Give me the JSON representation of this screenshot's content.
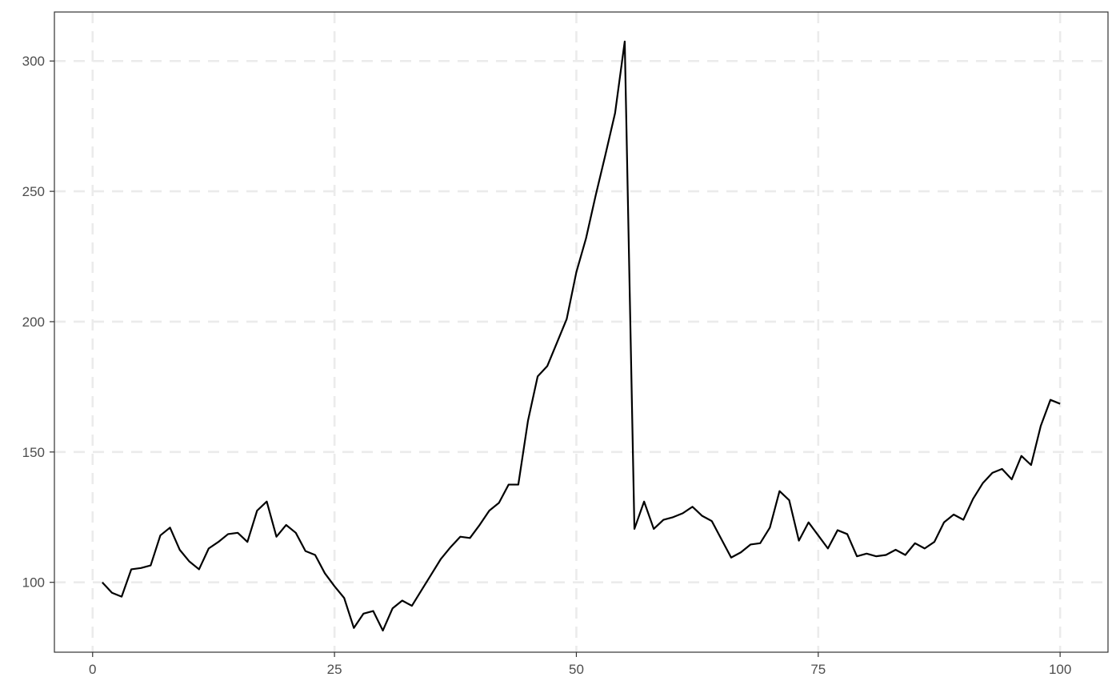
{
  "chart_data": {
    "type": "line",
    "title": "",
    "xlabel": "",
    "ylabel": "",
    "xlim": [
      -3.95,
      104.95
    ],
    "ylim": [
      73.2,
      318.8
    ],
    "x_ticks": [
      0,
      25,
      50,
      75,
      100
    ],
    "y_ticks": [
      100,
      150,
      200,
      250,
      300
    ],
    "x_tick_labels": [
      "0",
      "25",
      "50",
      "75",
      "100"
    ],
    "y_tick_labels": [
      "100",
      "150",
      "200",
      "250",
      "300"
    ],
    "grid": true,
    "grid_style": "dashed",
    "legend": "none",
    "line_color": "#000000",
    "series": [
      {
        "x": [
          1,
          2,
          3,
          4,
          5,
          6,
          7,
          8,
          9,
          10,
          11,
          12,
          13,
          14,
          15,
          16,
          17,
          18,
          19,
          20,
          21,
          22,
          23,
          24,
          25,
          26,
          27,
          28,
          29,
          30,
          31,
          32,
          33,
          34,
          35,
          36,
          37,
          38,
          39,
          40,
          41,
          42,
          43,
          44,
          45,
          46,
          47,
          48,
          49,
          50,
          51,
          52,
          53,
          54,
          55,
          56,
          57,
          58,
          59,
          60,
          61,
          62,
          63,
          64,
          65,
          66,
          67,
          68,
          69,
          70,
          71,
          72,
          73,
          74,
          75,
          76,
          77,
          78,
          79,
          80,
          81,
          82,
          83,
          84,
          85,
          86,
          87,
          88,
          89,
          90,
          91,
          92,
          93,
          94,
          95,
          96,
          97,
          98,
          99,
          100
        ],
        "values": [
          100,
          96,
          94.5,
          105,
          105.5,
          106.5,
          118,
          121,
          112.5,
          108,
          105,
          113,
          115.5,
          118.5,
          119,
          115.5,
          127.5,
          131,
          117.5,
          122,
          119,
          112,
          110.5,
          103.5,
          98.5,
          94,
          82.5,
          88,
          89,
          81.5,
          90,
          93,
          91,
          97,
          103,
          109,
          113.5,
          117.5,
          117,
          122,
          127.5,
          130.5,
          137.5,
          137.5,
          162,
          179,
          183,
          192,
          201,
          219,
          232,
          248.5,
          264,
          280,
          307.5,
          120.5,
          131,
          120.5,
          124,
          125,
          126.5,
          129,
          125.5,
          123.5,
          116.5,
          109.5,
          111.5,
          114.5,
          115,
          121,
          135,
          131.5,
          116,
          123,
          118,
          113,
          120,
          118.5,
          110,
          111,
          110,
          110.5,
          112.5,
          110.5,
          115,
          113,
          115.5,
          123,
          126,
          124,
          132,
          138,
          142,
          143.5,
          139.5,
          148.5,
          145,
          160,
          170,
          168.5
        ]
      }
    ]
  }
}
